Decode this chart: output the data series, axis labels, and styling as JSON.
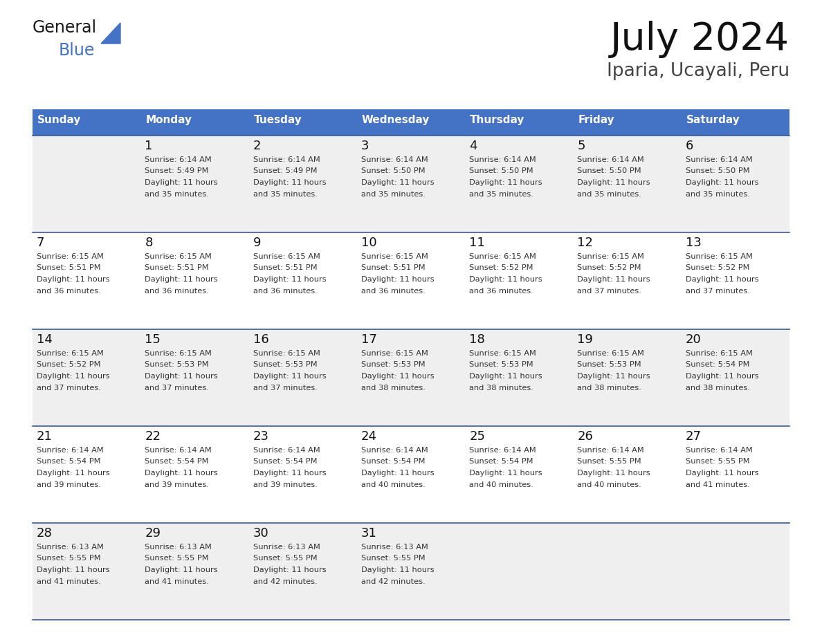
{
  "title": "July 2024",
  "subtitle": "Iparia, Ucayali, Peru",
  "days_of_week": [
    "Sunday",
    "Monday",
    "Tuesday",
    "Wednesday",
    "Thursday",
    "Friday",
    "Saturday"
  ],
  "header_bg": "#4472C4",
  "header_text": "#FFFFFF",
  "row_bg_light": "#EFEFEF",
  "row_bg_white": "#FFFFFF",
  "row_bgs": [
    "#EFEFEF",
    "#FFFFFF",
    "#EFEFEF",
    "#FFFFFF",
    "#EFEFEF"
  ],
  "border_color": "#3B5998",
  "day_number_color": "#111111",
  "cell_text_color": "#333333",
  "title_color": "#111111",
  "subtitle_color": "#444444",
  "general_color": "#1a1a1a",
  "blue_color": "#4472C4",
  "calendar_data": [
    {
      "day": 1,
      "col": 1,
      "row": 0,
      "sunrise": "6:14 AM",
      "sunset": "5:49 PM",
      "daylight_min": "35"
    },
    {
      "day": 2,
      "col": 2,
      "row": 0,
      "sunrise": "6:14 AM",
      "sunset": "5:49 PM",
      "daylight_min": "35"
    },
    {
      "day": 3,
      "col": 3,
      "row": 0,
      "sunrise": "6:14 AM",
      "sunset": "5:50 PM",
      "daylight_min": "35"
    },
    {
      "day": 4,
      "col": 4,
      "row": 0,
      "sunrise": "6:14 AM",
      "sunset": "5:50 PM",
      "daylight_min": "35"
    },
    {
      "day": 5,
      "col": 5,
      "row": 0,
      "sunrise": "6:14 AM",
      "sunset": "5:50 PM",
      "daylight_min": "35"
    },
    {
      "day": 6,
      "col": 6,
      "row": 0,
      "sunrise": "6:14 AM",
      "sunset": "5:50 PM",
      "daylight_min": "35"
    },
    {
      "day": 7,
      "col": 0,
      "row": 1,
      "sunrise": "6:15 AM",
      "sunset": "5:51 PM",
      "daylight_min": "36"
    },
    {
      "day": 8,
      "col": 1,
      "row": 1,
      "sunrise": "6:15 AM",
      "sunset": "5:51 PM",
      "daylight_min": "36"
    },
    {
      "day": 9,
      "col": 2,
      "row": 1,
      "sunrise": "6:15 AM",
      "sunset": "5:51 PM",
      "daylight_min": "36"
    },
    {
      "day": 10,
      "col": 3,
      "row": 1,
      "sunrise": "6:15 AM",
      "sunset": "5:51 PM",
      "daylight_min": "36"
    },
    {
      "day": 11,
      "col": 4,
      "row": 1,
      "sunrise": "6:15 AM",
      "sunset": "5:52 PM",
      "daylight_min": "36"
    },
    {
      "day": 12,
      "col": 5,
      "row": 1,
      "sunrise": "6:15 AM",
      "sunset": "5:52 PM",
      "daylight_min": "37"
    },
    {
      "day": 13,
      "col": 6,
      "row": 1,
      "sunrise": "6:15 AM",
      "sunset": "5:52 PM",
      "daylight_min": "37"
    },
    {
      "day": 14,
      "col": 0,
      "row": 2,
      "sunrise": "6:15 AM",
      "sunset": "5:52 PM",
      "daylight_min": "37"
    },
    {
      "day": 15,
      "col": 1,
      "row": 2,
      "sunrise": "6:15 AM",
      "sunset": "5:53 PM",
      "daylight_min": "37"
    },
    {
      "day": 16,
      "col": 2,
      "row": 2,
      "sunrise": "6:15 AM",
      "sunset": "5:53 PM",
      "daylight_min": "37"
    },
    {
      "day": 17,
      "col": 3,
      "row": 2,
      "sunrise": "6:15 AM",
      "sunset": "5:53 PM",
      "daylight_min": "38"
    },
    {
      "day": 18,
      "col": 4,
      "row": 2,
      "sunrise": "6:15 AM",
      "sunset": "5:53 PM",
      "daylight_min": "38"
    },
    {
      "day": 19,
      "col": 5,
      "row": 2,
      "sunrise": "6:15 AM",
      "sunset": "5:53 PM",
      "daylight_min": "38"
    },
    {
      "day": 20,
      "col": 6,
      "row": 2,
      "sunrise": "6:15 AM",
      "sunset": "5:54 PM",
      "daylight_min": "38"
    },
    {
      "day": 21,
      "col": 0,
      "row": 3,
      "sunrise": "6:14 AM",
      "sunset": "5:54 PM",
      "daylight_min": "39"
    },
    {
      "day": 22,
      "col": 1,
      "row": 3,
      "sunrise": "6:14 AM",
      "sunset": "5:54 PM",
      "daylight_min": "39"
    },
    {
      "day": 23,
      "col": 2,
      "row": 3,
      "sunrise": "6:14 AM",
      "sunset": "5:54 PM",
      "daylight_min": "39"
    },
    {
      "day": 24,
      "col": 3,
      "row": 3,
      "sunrise": "6:14 AM",
      "sunset": "5:54 PM",
      "daylight_min": "40"
    },
    {
      "day": 25,
      "col": 4,
      "row": 3,
      "sunrise": "6:14 AM",
      "sunset": "5:54 PM",
      "daylight_min": "40"
    },
    {
      "day": 26,
      "col": 5,
      "row": 3,
      "sunrise": "6:14 AM",
      "sunset": "5:55 PM",
      "daylight_min": "40"
    },
    {
      "day": 27,
      "col": 6,
      "row": 3,
      "sunrise": "6:14 AM",
      "sunset": "5:55 PM",
      "daylight_min": "41"
    },
    {
      "day": 28,
      "col": 0,
      "row": 4,
      "sunrise": "6:13 AM",
      "sunset": "5:55 PM",
      "daylight_min": "41"
    },
    {
      "day": 29,
      "col": 1,
      "row": 4,
      "sunrise": "6:13 AM",
      "sunset": "5:55 PM",
      "daylight_min": "41"
    },
    {
      "day": 30,
      "col": 2,
      "row": 4,
      "sunrise": "6:13 AM",
      "sunset": "5:55 PM",
      "daylight_min": "42"
    },
    {
      "day": 31,
      "col": 3,
      "row": 4,
      "sunrise": "6:13 AM",
      "sunset": "5:55 PM",
      "daylight_min": "42"
    }
  ]
}
